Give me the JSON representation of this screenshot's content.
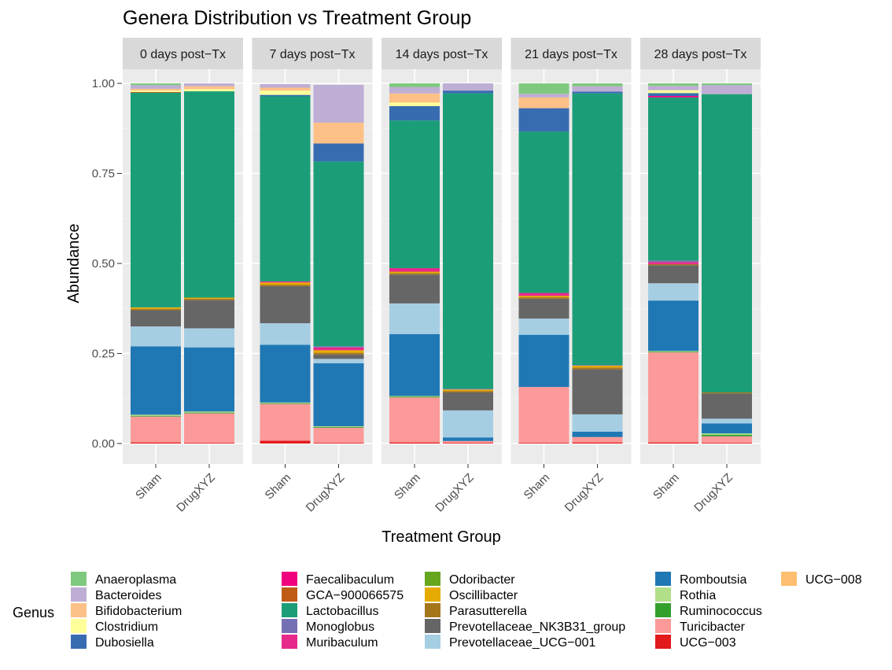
{
  "chart_data": {
    "type": "bar",
    "title": "Genera Distribution vs Treatment Group",
    "xlabel": "Treatment Group",
    "ylabel": "Abundance",
    "ylim": [
      0,
      1.05
    ],
    "y_ticks": [
      "0.00",
      "0.25",
      "0.50",
      "0.75",
      "1.00"
    ],
    "y_tick_values": [
      0,
      0.25,
      0.5,
      0.75,
      1.0
    ],
    "facets": [
      "0 days post−Tx",
      "7 days post−Tx",
      "14 days post−Tx",
      "21 days post−Tx",
      "28 days post−Tx"
    ],
    "groups": [
      "Sham",
      "DrugXYZ"
    ],
    "legend_title": "Genus",
    "legend_position": "bottom",
    "grid": true,
    "genera": [
      {
        "name": "Anaeroplasma",
        "color": "#7fc97f"
      },
      {
        "name": "Bacteroides",
        "color": "#beaed4"
      },
      {
        "name": "Bifidobacterium",
        "color": "#fdc086"
      },
      {
        "name": "Clostridium",
        "color": "#ffff99"
      },
      {
        "name": "Dubosiella",
        "color": "#386cb0"
      },
      {
        "name": "Faecalibaculum",
        "color": "#f0027f"
      },
      {
        "name": "GCA−900066575",
        "color": "#bf5b17"
      },
      {
        "name": "Lactobacillus",
        "color": "#1b9e77"
      },
      {
        "name": "Monoglobus",
        "color": "#7570b3"
      },
      {
        "name": "Muribaculum",
        "color": "#e7298a"
      },
      {
        "name": "Odoribacter",
        "color": "#66a61e"
      },
      {
        "name": "Oscillibacter",
        "color": "#e6ab02"
      },
      {
        "name": "Parasutterella",
        "color": "#a6761d"
      },
      {
        "name": "Prevotellaceae_NK3B31_group",
        "color": "#666666"
      },
      {
        "name": "Prevotellaceae_UCG−001",
        "color": "#a6cee3"
      },
      {
        "name": "Romboutsia",
        "color": "#1f78b4"
      },
      {
        "name": "Rothia",
        "color": "#b2df8a"
      },
      {
        "name": "Ruminococcus",
        "color": "#33a02c"
      },
      {
        "name": "Turicibacter",
        "color": "#fb9a99"
      },
      {
        "name": "UCG−003",
        "color": "#e31a1c"
      },
      {
        "name": "UCG−008",
        "color": "#fdbf6f"
      }
    ],
    "stack_order_bottom_to_top": [
      "UCG−003",
      "Turicibacter",
      "Ruminococcus",
      "Rothia",
      "Romboutsia",
      "Prevotellaceae_UCG−001",
      "Prevotellaceae_NK3B31_group",
      "Parasutterella",
      "Oscillibacter",
      "Odoribacter",
      "Muribaculum",
      "Monoglobus",
      "Lactobacillus",
      "GCA−900066575",
      "Faecalibaculum",
      "Dubosiella",
      "Clostridium",
      "Bifidobacterium",
      "Bacteroides",
      "Anaeroplasma",
      "UCG−008"
    ],
    "bars": [
      {
        "facet": 0,
        "group": "Sham",
        "segments": {
          "UCG−003": 0.003,
          "Turicibacter": 0.072,
          "Ruminococcus": 0.002,
          "Rothia": 0.003,
          "Romboutsia": 0.19,
          "Prevotellaceae_UCG−001": 0.055,
          "Prevotellaceae_NK3B31_group": 0.045,
          "Parasutterella": 0.004,
          "Oscillibacter": 0.004,
          "Lactobacillus": 0.596,
          "GCA−900066575": 0.002,
          "Clostridium": 0.004,
          "Bifidobacterium": 0.005,
          "Bacteroides": 0.01,
          "Anaeroplasma": 0.005
        }
      },
      {
        "facet": 0,
        "group": "DrugXYZ",
        "segments": {
          "UCG−003": 0.002,
          "Turicibacter": 0.082,
          "Ruminococcus": 0.002,
          "Rothia": 0.003,
          "Romboutsia": 0.178,
          "Prevotellaceae_UCG−001": 0.053,
          "Prevotellaceae_NK3B31_group": 0.078,
          "Parasutterella": 0.004,
          "Oscillibacter": 0.003,
          "Lactobacillus": 0.573,
          "Clostridium": 0.006,
          "Bifidobacterium": 0.008,
          "Bacteroides": 0.008
        }
      },
      {
        "facet": 1,
        "group": "Sham",
        "segments": {
          "UCG−003": 0.008,
          "Turicibacter": 0.102,
          "Ruminococcus": 0.002,
          "Rothia": 0.002,
          "Romboutsia": 0.16,
          "Prevotellaceae_UCG−001": 0.06,
          "Prevotellaceae_NK3B31_group": 0.103,
          "Parasutterella": 0.004,
          "Oscillibacter": 0.006,
          "Lactobacillus": 0.514,
          "Muribaculum": 0.003,
          "Dubosiella": 0.004,
          "Clostridium": 0.012,
          "Bifidobacterium": 0.008,
          "Bacteroides": 0.01
        }
      },
      {
        "facet": 1,
        "group": "DrugXYZ",
        "segments": {
          "UCG−003": 0.002,
          "Turicibacter": 0.042,
          "Ruminococcus": 0.002,
          "Rothia": 0.002,
          "Romboutsia": 0.175,
          "Prevotellaceae_UCG−001": 0.012,
          "Prevotellaceae_NK3B31_group": 0.012,
          "Parasutterella": 0.005,
          "Oscillibacter": 0.007,
          "Lactobacillus": 0.513,
          "Muribaculum": 0.008,
          "Monoglobus": 0.003,
          "Dubosiella": 0.05,
          "Bifidobacterium": 0.058,
          "Bacteroides": 0.105
        }
      },
      {
        "facet": 2,
        "group": "Sham",
        "segments": {
          "UCG−003": 0.003,
          "Turicibacter": 0.125,
          "Ruminococcus": 0.002,
          "Rothia": 0.002,
          "Romboutsia": 0.172,
          "Prevotellaceae_UCG−001": 0.085,
          "Prevotellaceae_NK3B31_group": 0.08,
          "Parasutterella": 0.004,
          "Oscillibacter": 0.004,
          "Lactobacillus": 0.41,
          "Muribaculum": 0.01,
          "Dubosiella": 0.04,
          "Clostridium": 0.01,
          "Bifidobacterium": 0.025,
          "Bacteroides": 0.018,
          "Anaeroplasma": 0.01
        }
      },
      {
        "facet": 2,
        "group": "DrugXYZ",
        "segments": {
          "UCG−003": 0.002,
          "Turicibacter": 0.005,
          "Romboutsia": 0.01,
          "Prevotellaceae_UCG−001": 0.075,
          "Prevotellaceae_NK3B31_group": 0.05,
          "Parasutterella": 0.004,
          "Oscillibacter": 0.004,
          "Lactobacillus": 0.82,
          "Monoglobus": 0.002,
          "Dubosiella": 0.008,
          "Bacteroides": 0.02
        }
      },
      {
        "facet": 3,
        "group": "Sham",
        "segments": {
          "UCG−003": 0.002,
          "Turicibacter": 0.155,
          "Romboutsia": 0.145,
          "Prevotellaceae_UCG−001": 0.045,
          "Prevotellaceae_NK3B31_group": 0.055,
          "Parasutterella": 0.004,
          "Oscillibacter": 0.004,
          "Lactobacillus": 0.448,
          "Muribaculum": 0.008,
          "Dubosiella": 0.065,
          "Bifidobacterium": 0.03,
          "Bacteroides": 0.01,
          "Anaeroplasma": 0.029
        }
      },
      {
        "facet": 3,
        "group": "DrugXYZ",
        "segments": {
          "UCG−003": 0.003,
          "Turicibacter": 0.015,
          "Romboutsia": 0.015,
          "Prevotellaceae_UCG−001": 0.048,
          "Prevotellaceae_NK3B31_group": 0.125,
          "Parasutterella": 0.005,
          "Oscillibacter": 0.005,
          "Lactobacillus": 0.754,
          "Monoglobus": 0.002,
          "Dubosiella": 0.005,
          "Bacteroides": 0.015,
          "Anaeroplasma": 0.008
        }
      },
      {
        "facet": 4,
        "group": "Sham",
        "segments": {
          "UCG−003": 0.003,
          "Turicibacter": 0.25,
          "Ruminococcus": 0.002,
          "Rothia": 0.002,
          "Romboutsia": 0.14,
          "Prevotellaceae_UCG−001": 0.048,
          "Prevotellaceae_NK3B31_group": 0.05,
          "Parasutterella": 0.003,
          "Monoglobus": 0.004,
          "Lactobacillus": 0.453,
          "Muribaculum": 0.006,
          "Dubosiella": 0.008,
          "Faecalibaculum": 0.004,
          "Clostridium": 0.008,
          "Bacteroides": 0.012,
          "Anaeroplasma": 0.007
        }
      },
      {
        "facet": 4,
        "group": "DrugXYZ",
        "segments": {
          "UCG−003": 0.002,
          "Turicibacter": 0.018,
          "Ruminococcus": 0.004,
          "Rothia": 0.004,
          "Romboutsia": 0.028,
          "Prevotellaceae_UCG−001": 0.013,
          "Prevotellaceae_NK3B31_group": 0.07,
          "Parasutterella": 0.003,
          "Lactobacillus": 0.828,
          "Bacteroides": 0.025,
          "Anaeroplasma": 0.005
        }
      }
    ]
  }
}
